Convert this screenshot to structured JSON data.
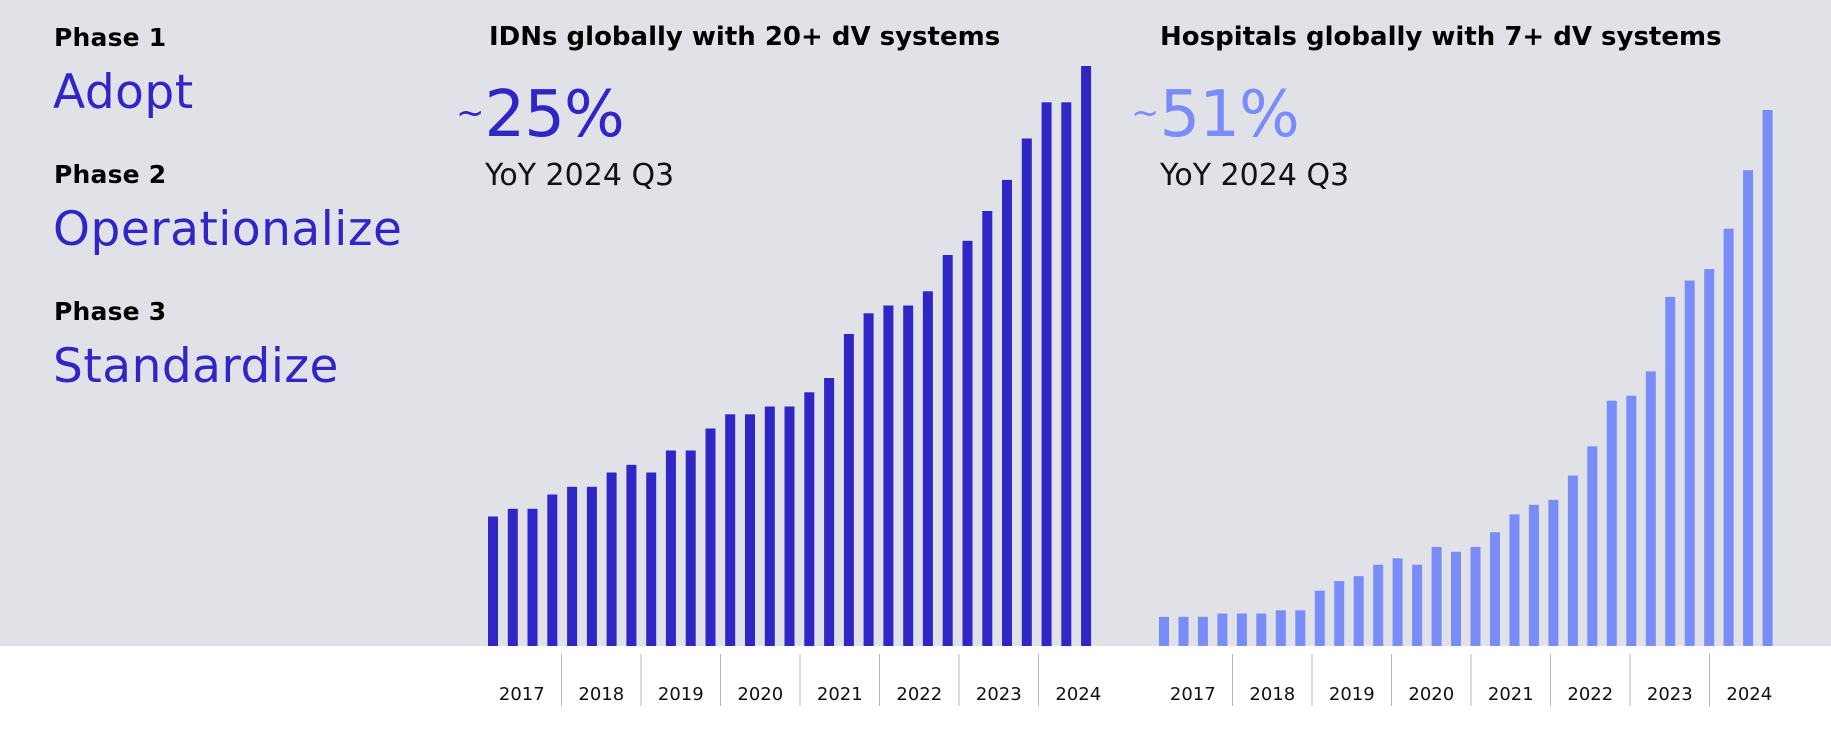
{
  "phases": [
    {
      "label": "Phase 1",
      "name": "Adopt"
    },
    {
      "label": "Phase 2",
      "name": "Operationalize"
    },
    {
      "label": "Phase 3",
      "name": "Standardize"
    }
  ],
  "colors": {
    "background": "#e1e2e8",
    "phase_text": "#2f26c5",
    "chart1_bars": "#2f26c5",
    "chart2_bars": "#7a8cf8"
  },
  "chart_data": [
    {
      "type": "bar",
      "title": "IDNs globally with 20+ dV systems",
      "stat_prefix": "~",
      "stat_value": "25%",
      "stat_subtitle": "YoY 2024 Q3",
      "x_tick_labels": [
        "2017",
        "2018",
        "2019",
        "2020",
        "2021",
        "2022",
        "2023",
        "2024"
      ],
      "series": [
        {
          "values": [
            100,
            106,
            106,
            117,
            123,
            123,
            134,
            140,
            134,
            151,
            151,
            168,
            179,
            179,
            185,
            185,
            196,
            207,
            241,
            257,
            263,
            263,
            274,
            302,
            313,
            336,
            360,
            392,
            420,
            420,
            448
          ]
        }
      ],
      "ylim": [
        0,
        448
      ]
    },
    {
      "type": "bar",
      "title": "Hospitals globally with 7+ dV systems",
      "stat_prefix": "~",
      "stat_value": "51%",
      "stat_subtitle": "YoY 2024 Q3",
      "x_tick_labels": [
        "2017",
        "2018",
        "2019",
        "2020",
        "2021",
        "2022",
        "2023",
        "2024"
      ],
      "series": [
        {
          "values": [
            100,
            100,
            100,
            111,
            111,
            111,
            122,
            122,
            189,
            222,
            239,
            278,
            300,
            278,
            339,
            322,
            339,
            389,
            450,
            483,
            500,
            583,
            683,
            839,
            856,
            939,
            1194,
            1250,
            1289,
            1427,
            1627,
            1833
          ]
        }
      ],
      "ylim": [
        0,
        1833
      ]
    }
  ]
}
